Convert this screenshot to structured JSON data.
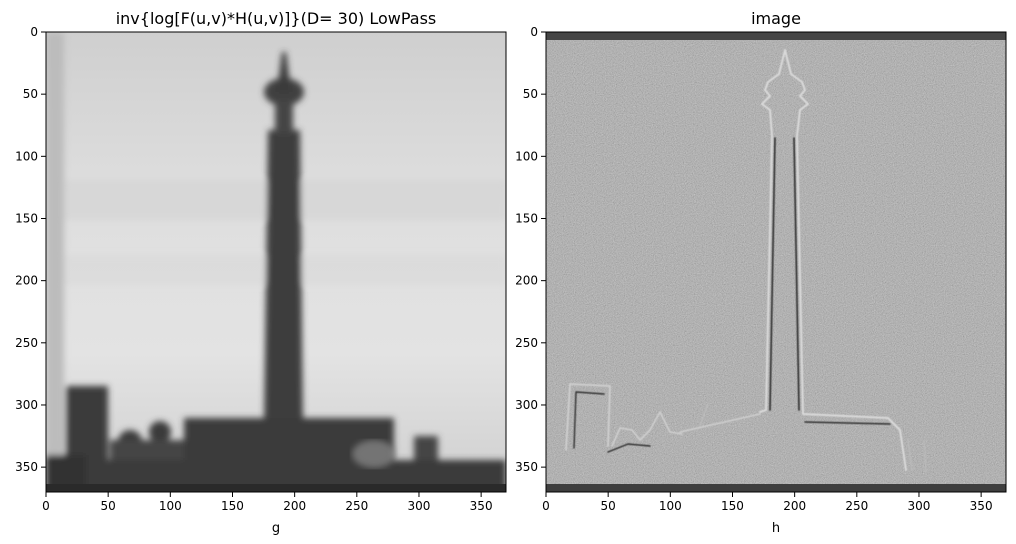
{
  "figure": {
    "panels": [
      {
        "title": "inv{log[F(u,v)*H(u,v)]}(D= 30) LowPass",
        "xlabel": "g"
      },
      {
        "title": "image",
        "xlabel": "h"
      }
    ]
  },
  "chart_data": [
    {
      "type": "heatmap",
      "title": "inv{log[F(u,v)*H(u,v)]}(D= 30) LowPass",
      "xlabel": "g",
      "ylabel": "",
      "xlim": [
        0,
        370
      ],
      "ylim": [
        370,
        0
      ],
      "xticks": [
        0,
        50,
        100,
        150,
        200,
        250,
        300,
        350
      ],
      "yticks": [
        0,
        50,
        100,
        150,
        200,
        250,
        300,
        350
      ],
      "colormap": "gray",
      "content": "blurred grayscale photo of a monument tower on a light sky with dark buildings at the bottom"
    },
    {
      "type": "heatmap",
      "title": "image",
      "xlabel": "h",
      "ylabel": "",
      "xlim": [
        0,
        370
      ],
      "ylim": [
        370,
        0
      ],
      "xticks": [
        0,
        50,
        100,
        150,
        200,
        250,
        300,
        350
      ],
      "yticks": [
        0,
        50,
        100,
        150,
        200,
        250,
        300,
        350
      ],
      "colormap": "gray",
      "content": "high-pass edge image of the same monument on a noisy mid-gray background"
    }
  ]
}
